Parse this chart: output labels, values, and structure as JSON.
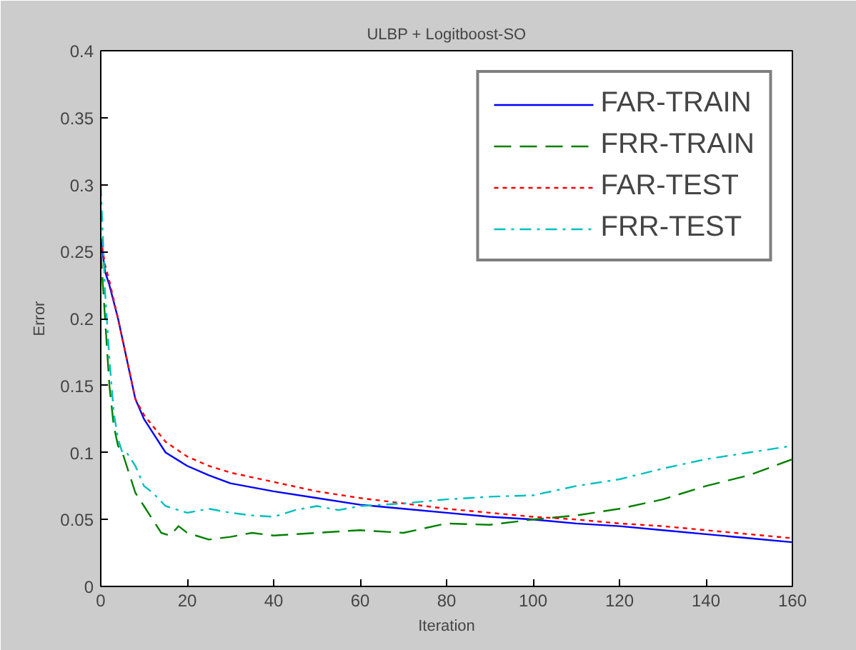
{
  "chart_data": {
    "type": "line",
    "title": "ULBP + Logitboost-SO",
    "xlabel": "Iteration",
    "ylabel": "Error",
    "xlim": [
      0,
      160
    ],
    "ylim": [
      0,
      0.4
    ],
    "xticks": [
      0,
      20,
      40,
      60,
      80,
      100,
      120,
      140,
      160
    ],
    "yticks": [
      0,
      0.05,
      0.1,
      0.15,
      0.2,
      0.25,
      0.3,
      0.35,
      0.4
    ],
    "grid": false,
    "legend": "top right",
    "marker": "none",
    "series": [
      {
        "name": "FAR-TRAIN",
        "color": "#0000ff",
        "line_style": "solid",
        "x": [
          0,
          1,
          2,
          4,
          6,
          8,
          10,
          12,
          15,
          20,
          25,
          30,
          40,
          50,
          60,
          70,
          80,
          90,
          100,
          110,
          120,
          130,
          140,
          150,
          160
        ],
        "values": [
          0.26,
          0.235,
          0.225,
          0.2,
          0.17,
          0.14,
          0.125,
          0.115,
          0.1,
          0.09,
          0.083,
          0.077,
          0.071,
          0.066,
          0.061,
          0.058,
          0.055,
          0.052,
          0.05,
          0.047,
          0.045,
          0.042,
          0.039,
          0.036,
          0.033
        ]
      },
      {
        "name": "FRR-TRAIN",
        "color": "#008000",
        "line_style": "dashed",
        "x": [
          0,
          1,
          2,
          3,
          4,
          5,
          6,
          7,
          8,
          10,
          12,
          14,
          16,
          18,
          20,
          22,
          25,
          30,
          35,
          40,
          50,
          60,
          70,
          80,
          90,
          100,
          110,
          120,
          130,
          140,
          150,
          160
        ],
        "values": [
          0.25,
          0.2,
          0.15,
          0.12,
          0.105,
          0.1,
          0.09,
          0.08,
          0.07,
          0.06,
          0.05,
          0.04,
          0.038,
          0.045,
          0.04,
          0.038,
          0.035,
          0.037,
          0.04,
          0.038,
          0.04,
          0.042,
          0.04,
          0.047,
          0.046,
          0.05,
          0.053,
          0.058,
          0.065,
          0.075,
          0.083,
          0.095
        ]
      },
      {
        "name": "FAR-TEST",
        "color": "#ff0000",
        "line_style": "dotted",
        "x": [
          0,
          1,
          2,
          4,
          6,
          8,
          10,
          12,
          15,
          20,
          25,
          30,
          40,
          50,
          60,
          70,
          80,
          90,
          100,
          110,
          120,
          130,
          140,
          150,
          160
        ],
        "values": [
          0.26,
          0.24,
          0.228,
          0.2,
          0.17,
          0.14,
          0.128,
          0.12,
          0.108,
          0.097,
          0.09,
          0.085,
          0.078,
          0.071,
          0.066,
          0.062,
          0.058,
          0.055,
          0.052,
          0.05,
          0.047,
          0.045,
          0.042,
          0.039,
          0.036
        ]
      },
      {
        "name": "FRR-TEST",
        "color": "#00bfbf",
        "line_style": "dashdot",
        "x": [
          0,
          1,
          2,
          3,
          4,
          5,
          6,
          8,
          10,
          12,
          15,
          20,
          25,
          30,
          35,
          40,
          45,
          50,
          55,
          60,
          70,
          80,
          90,
          100,
          110,
          120,
          130,
          140,
          150,
          160
        ],
        "values": [
          0.3,
          0.22,
          0.17,
          0.13,
          0.11,
          0.1,
          0.1,
          0.09,
          0.075,
          0.07,
          0.06,
          0.055,
          0.058,
          0.055,
          0.053,
          0.052,
          0.057,
          0.06,
          0.057,
          0.06,
          0.062,
          0.065,
          0.067,
          0.068,
          0.075,
          0.08,
          0.088,
          0.095,
          0.1,
          0.105
        ]
      }
    ]
  }
}
